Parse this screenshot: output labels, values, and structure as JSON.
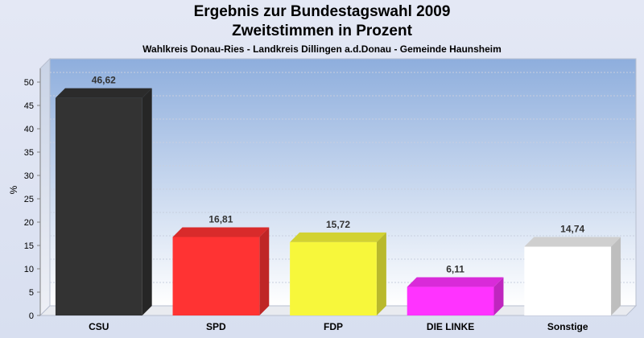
{
  "chart_data": {
    "type": "bar",
    "title": "Ergebnis zur Bundestagswahl 2009",
    "title2": "Zweitstimmen in Prozent",
    "subtitle": "Wahlkreis Donau-Ries - Landkreis Dillingen a.d.Donau - Gemeinde Haunsheim",
    "xlabel": "",
    "ylabel": "%",
    "ylim": [
      0,
      55
    ],
    "yticks": [
      0,
      5,
      10,
      15,
      20,
      25,
      30,
      35,
      40,
      45,
      50
    ],
    "grid": true,
    "categories": [
      "CSU",
      "SPD",
      "FDP",
      "DIE LINKE",
      "Sonstige"
    ],
    "values": [
      46.62,
      16.81,
      15.72,
      6.11,
      14.74
    ],
    "value_labels": [
      "46,62",
      "16,81",
      "15,72",
      "6,11",
      "14,74"
    ],
    "colors": [
      "#333333",
      "#ff3333",
      "#f7f73b",
      "#ff33ff",
      "#ffffff"
    ]
  }
}
